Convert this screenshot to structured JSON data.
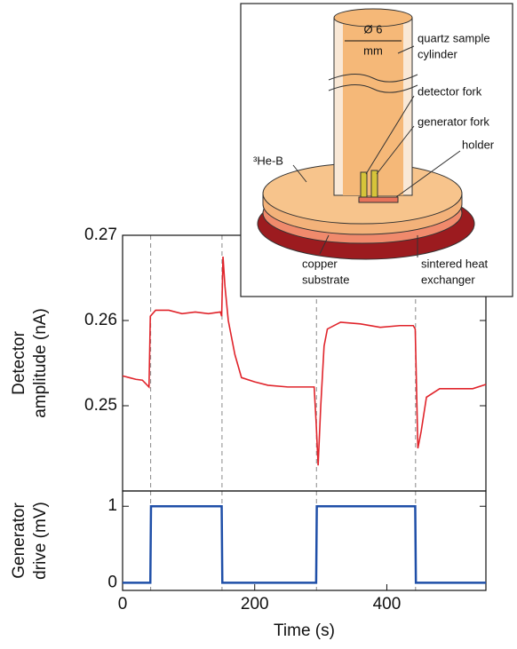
{
  "chart_data": [
    {
      "type": "line",
      "ylabel": [
        "Detector",
        "amplitude (nA)"
      ],
      "color": "#e0242b",
      "x": [
        0,
        10,
        20,
        30,
        40,
        42,
        50,
        70,
        90,
        110,
        130,
        148,
        150,
        152,
        155,
        160,
        170,
        180,
        200,
        220,
        250,
        270,
        290,
        293,
        296,
        300,
        305,
        310,
        330,
        360,
        390,
        420,
        440,
        443,
        447,
        452,
        460,
        480,
        500,
        530,
        550
      ],
      "values": [
        0.2535,
        0.2533,
        0.2531,
        0.253,
        0.2522,
        0.2605,
        0.2612,
        0.2612,
        0.2608,
        0.261,
        0.2608,
        0.261,
        0.2605,
        0.2675,
        0.264,
        0.26,
        0.256,
        0.2533,
        0.2528,
        0.2524,
        0.2522,
        0.2522,
        0.2522,
        0.248,
        0.243,
        0.25,
        0.257,
        0.259,
        0.2598,
        0.2596,
        0.2592,
        0.2594,
        0.2594,
        0.259,
        0.245,
        0.247,
        0.251,
        0.252,
        0.252,
        0.252,
        0.2525
      ],
      "xlim": [
        0,
        550
      ],
      "ylim": [
        0.24,
        0.27
      ],
      "yticks": [
        0.25,
        0.26,
        0.27
      ]
    },
    {
      "type": "line",
      "ylabel": [
        "Generator",
        "drive (mV)"
      ],
      "xlabel": "Time  (s)",
      "color": "#1f4fa8",
      "x": [
        0,
        42,
        43,
        150,
        151,
        293,
        294,
        443,
        444,
        550
      ],
      "values": [
        0,
        0,
        1,
        1,
        0,
        0,
        1,
        1,
        0,
        0
      ],
      "xlim": [
        0,
        550
      ],
      "ylim": [
        -0.1,
        1.2
      ],
      "yticks": [
        0,
        1
      ],
      "xticks": [
        0,
        200,
        400
      ]
    }
  ],
  "inset": {
    "cylinder": [
      "quartz sample",
      "cylinder"
    ],
    "diameter": [
      "Ø 6",
      "mm"
    ],
    "detector": "detector fork",
    "generator": "generator fork",
    "holder": "holder",
    "liquid": "³He-B",
    "substrate": [
      "copper",
      "substrate"
    ],
    "exchanger": [
      "sintered heat",
      "exchanger"
    ]
  }
}
